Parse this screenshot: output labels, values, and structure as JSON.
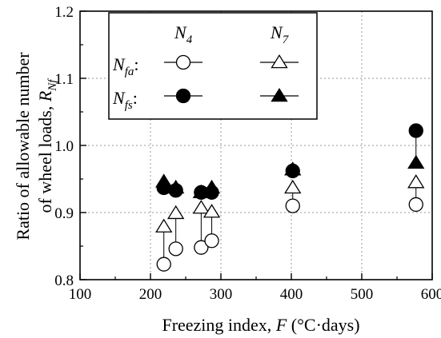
{
  "chart_data": {
    "type": "scatter",
    "xlabel": {
      "main": "Freezing index, ",
      "var": "F",
      "unit": " (°C·days)"
    },
    "ylabel": {
      "line1": "Ratio of allowable number",
      "line2_main": "of wheel loads, ",
      "line2_var": "R",
      "line2_sub": "Nf"
    },
    "xlim": [
      100,
      600
    ],
    "ylim": [
      0.8,
      1.2
    ],
    "x_ticks": [
      100,
      200,
      300,
      400,
      500,
      600
    ],
    "y_ticks": [
      0.8,
      0.9,
      1.0,
      1.1,
      1.2
    ],
    "x_tick_labels": [
      "100",
      "200",
      "300",
      "400",
      "500",
      "600"
    ],
    "y_tick_labels": [
      "0.8",
      "0.9",
      "1.0",
      "1.1",
      "1.2"
    ],
    "grid": "dashed",
    "legend": {
      "placement": "top-left",
      "col_headers": [
        {
          "main": "N",
          "sub": "4"
        },
        {
          "main": "N",
          "sub": "7"
        }
      ],
      "row_labels": [
        {
          "main": "N",
          "sub": "fa",
          "suffix": ":"
        },
        {
          "main": "N",
          "sub": "fs",
          "suffix": ":"
        }
      ]
    },
    "series": [
      {
        "key": "nfa_n4",
        "marker": "circle",
        "filled": false,
        "color": "#000000",
        "points": [
          [
            219,
            0.823
          ],
          [
            236,
            0.846
          ],
          [
            272,
            0.848
          ],
          [
            287,
            0.858
          ],
          [
            402,
            0.91
          ],
          [
            577,
            0.912
          ]
        ]
      },
      {
        "key": "nfa_n7",
        "marker": "triangle",
        "filled": false,
        "color": "#000000",
        "points": [
          [
            219,
            0.879
          ],
          [
            236,
            0.899
          ],
          [
            272,
            0.907
          ],
          [
            287,
            0.901
          ],
          [
            402,
            0.937
          ],
          [
            577,
            0.945
          ]
        ]
      },
      {
        "key": "nfs_n4",
        "marker": "circle",
        "filled": true,
        "color": "#000000",
        "points": [
          [
            219,
            0.937
          ],
          [
            236,
            0.933
          ],
          [
            272,
            0.93
          ],
          [
            287,
            0.93
          ],
          [
            402,
            0.962
          ],
          [
            577,
            1.022
          ]
        ]
      },
      {
        "key": "nfs_n7",
        "marker": "triangle",
        "filled": true,
        "color": "#000000",
        "points": [
          [
            219,
            0.946
          ],
          [
            236,
            0.937
          ],
          [
            272,
            0.93
          ],
          [
            287,
            0.937
          ],
          [
            402,
            0.964
          ],
          [
            577,
            0.974
          ]
        ]
      }
    ]
  }
}
